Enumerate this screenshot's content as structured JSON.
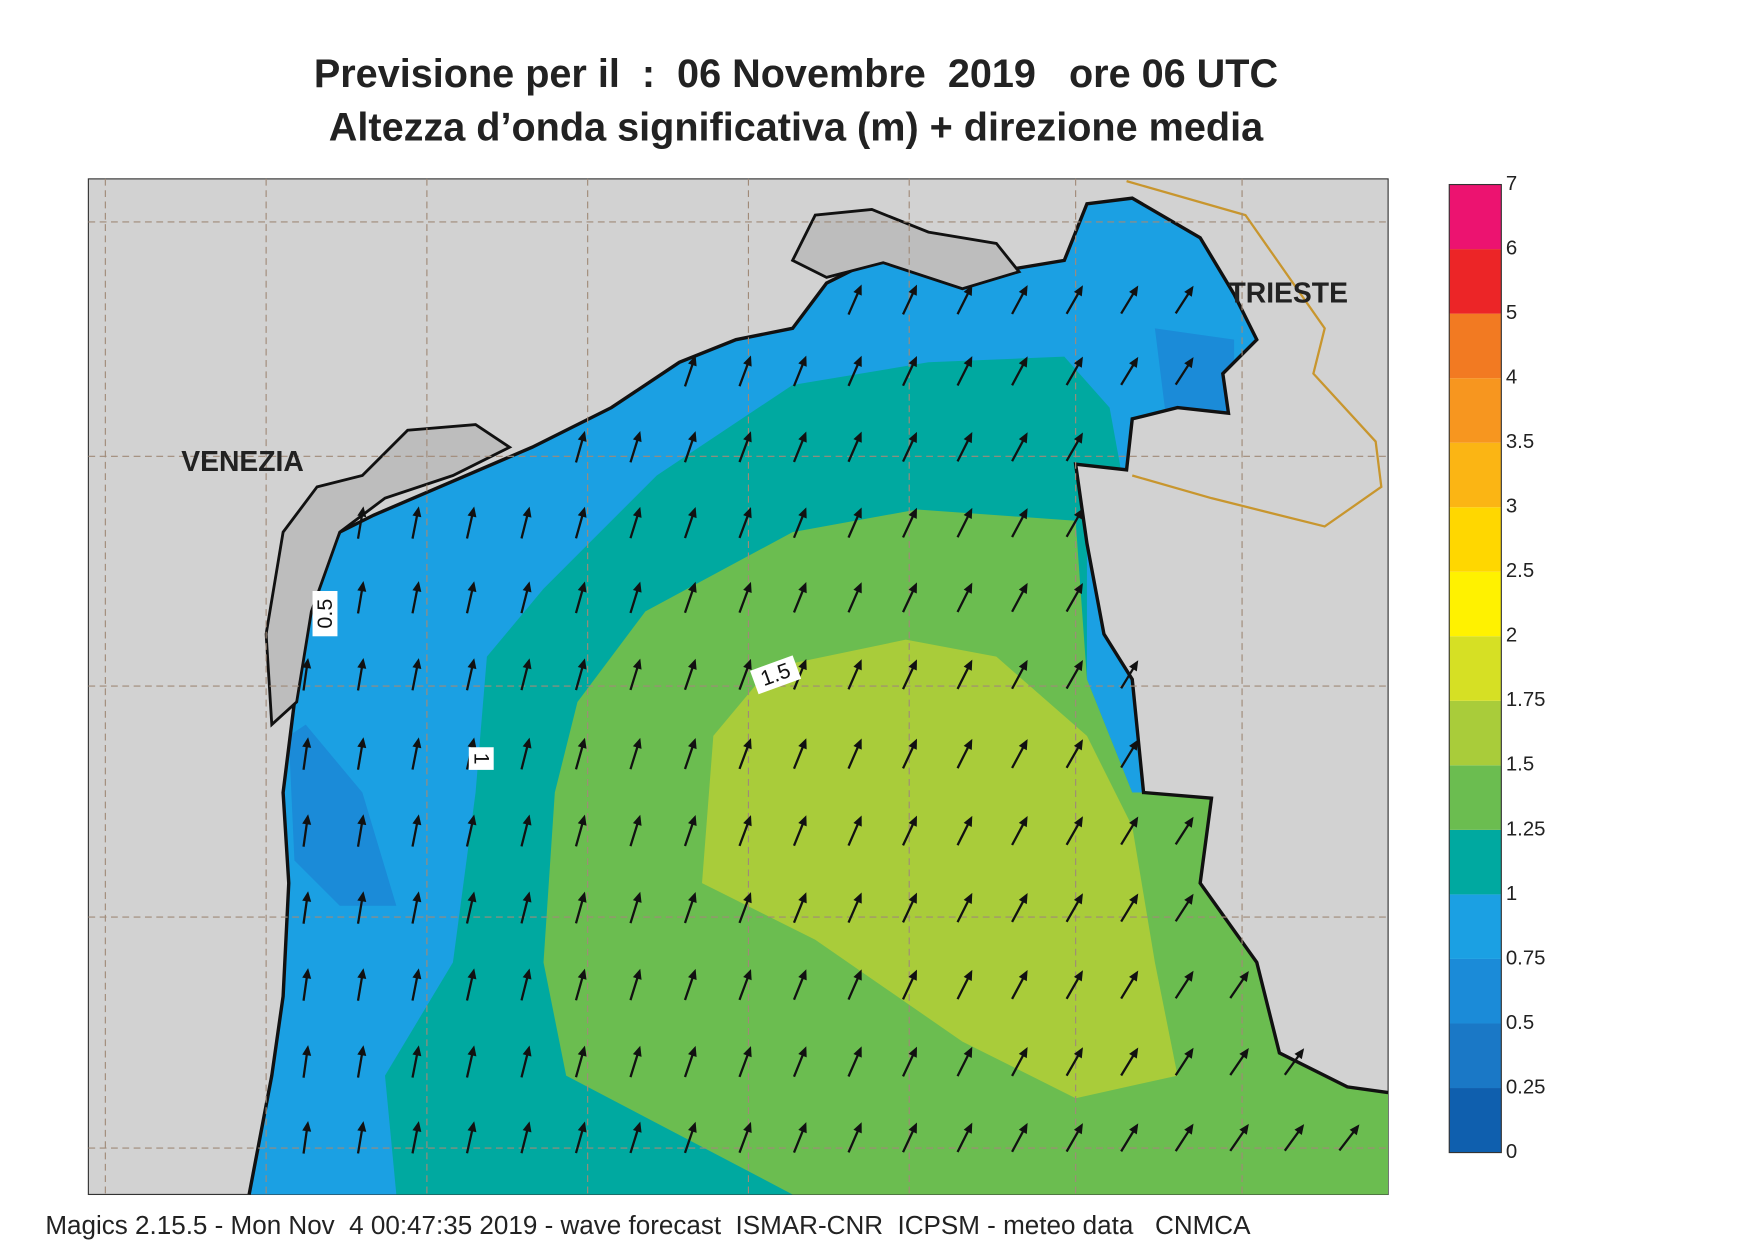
{
  "header": {
    "title": "Previsione per il  :  06 Novembre  2019   ore 06 UTC",
    "subtitle": "Altezza d’onda significativa (m) + direzione media"
  },
  "map": {
    "places": [
      "VENEZIA",
      "TRIESTE"
    ],
    "contour_labels": [
      0.5,
      1.5,
      1
    ]
  },
  "legend": {
    "levels": [
      0,
      0.25,
      0.5,
      0.75,
      1,
      1.25,
      1.5,
      1.75,
      2,
      2.5,
      3,
      3.5,
      4,
      5,
      6,
      7
    ],
    "colors": [
      "#0f5fae",
      "#1a78c6",
      "#1b8bd8",
      "#1ba0e3",
      "#00a9a0",
      "#6bbd50",
      "#a9cc3a",
      "#d6e024",
      "#fff200",
      "#ffd700",
      "#fbb514",
      "#f7961f",
      "#f27a22",
      "#ec2527",
      "#ec1370"
    ]
  },
  "footer": "Magics 2.15.5 - Mon Nov  4 00:47:35 2019 - wave forecast  ISMAR-CNR  ICPSM - meteo data   CNMCA"
}
